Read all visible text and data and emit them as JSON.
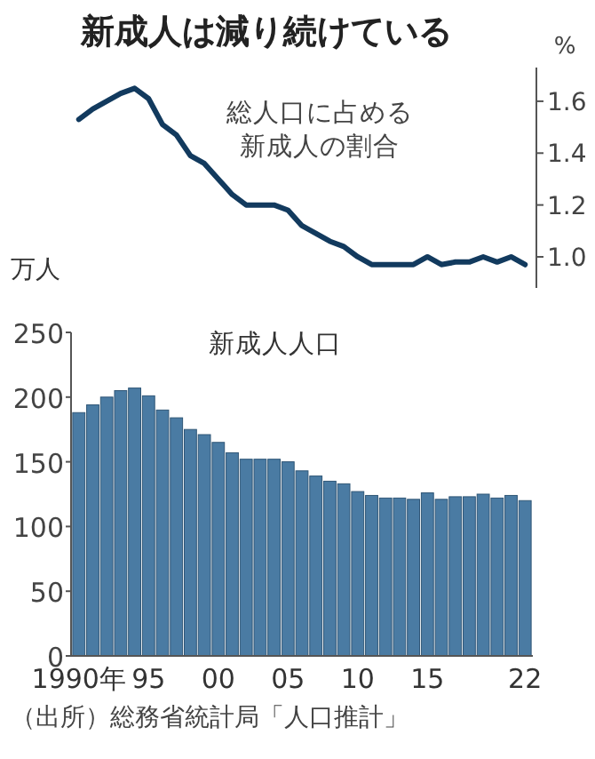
{
  "chart_data": [
    {
      "type": "line",
      "title": "新成人は減り続けている",
      "ylabel": "%",
      "annotations": [
        "総人口に占める新成人の割合"
      ],
      "categories": [
        null,
        null,
        null,
        null,
        null,
        null,
        null,
        null,
        null,
        null,
        null,
        null,
        null,
        null,
        null,
        null,
        null,
        null,
        null,
        null,
        null,
        null,
        null,
        null,
        null,
        null,
        null,
        null,
        null,
        null,
        null,
        null,
        null
      ],
      "series": [
        {
          "color": "#123a5e",
          "values": [
            1.53,
            1.57,
            1.6,
            1.63,
            1.65,
            1.61,
            1.51,
            1.47,
            1.39,
            1.36,
            1.3,
            1.24,
            1.2,
            1.2,
            1.2,
            1.18,
            1.12,
            1.09,
            1.06,
            1.04,
            1.0,
            0.97,
            0.97,
            0.97,
            0.97,
            1.0,
            0.97,
            0.98,
            0.98,
            1.0,
            0.98,
            1.0,
            0.97
          ]
        }
      ],
      "ylim": [
        0.88,
        1.73
      ],
      "yticks": [
        {
          "value": 1.0,
          "label": "1.0"
        },
        1.2,
        1.4,
        1.6
      ]
    },
    {
      "type": "bar",
      "title": "新成人人口",
      "ylabel": "万人",
      "annotations": [
        "（出所）総務省統計局「人口推計」"
      ],
      "categories": [
        "1990年",
        null,
        null,
        null,
        null,
        "95",
        null,
        null,
        null,
        null,
        "00",
        null,
        null,
        null,
        null,
        "05",
        null,
        null,
        null,
        null,
        "10",
        null,
        null,
        null,
        null,
        "15",
        null,
        null,
        null,
        null,
        null,
        null,
        "22"
      ],
      "series": [
        {
          "color": "#4a7ba3",
          "values": [
            188,
            194,
            200,
            205,
            207,
            201,
            190,
            184,
            175,
            171,
            165,
            157,
            152,
            152,
            152,
            150,
            143,
            139,
            135,
            133,
            127,
            124,
            122,
            122,
            121,
            126,
            121,
            123,
            123,
            125,
            122,
            124,
            120
          ]
        }
      ],
      "ylim": [
        0,
        250
      ],
      "yticks": [
        0,
        50,
        100,
        150,
        200,
        250
      ]
    }
  ]
}
